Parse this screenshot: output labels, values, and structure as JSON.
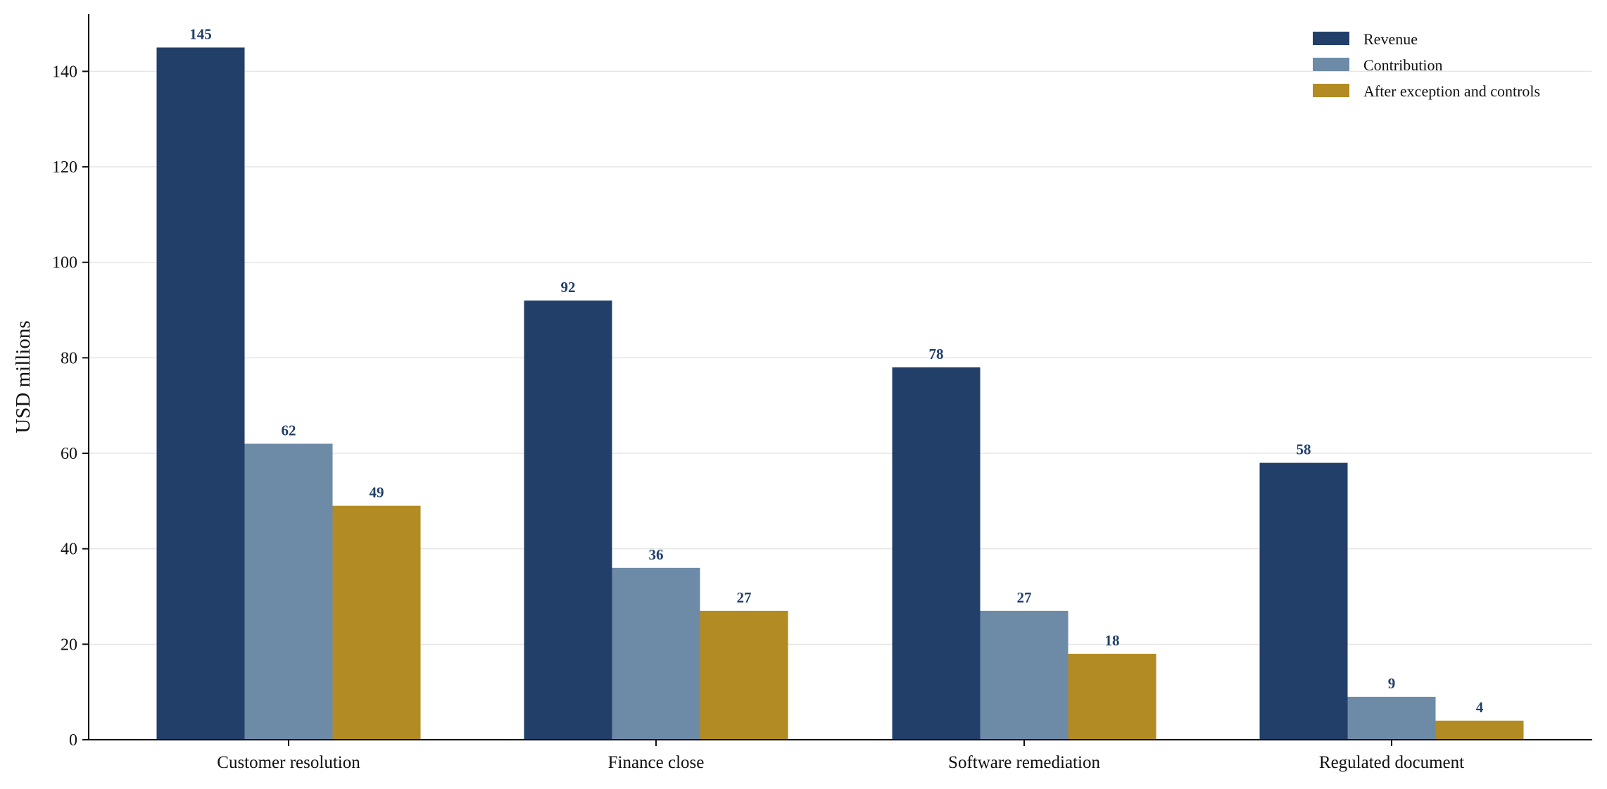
{
  "chart_data": {
    "type": "bar",
    "title": "",
    "xlabel": "",
    "ylabel": "USD millions",
    "ylim": [
      0,
      152
    ],
    "yticks": [
      0,
      20,
      40,
      60,
      80,
      100,
      120,
      140
    ],
    "grid": "horizontal",
    "legend_position": "top-right",
    "categories": [
      "Customer resolution",
      "Finance close",
      "Software remediation",
      "Regulated document"
    ],
    "series": [
      {
        "name": "Revenue",
        "color": "#213f69",
        "values": [
          145,
          92,
          78,
          58
        ]
      },
      {
        "name": "Contribution",
        "color": "#6d8ba7",
        "values": [
          62,
          36,
          27,
          9
        ]
      },
      {
        "name": "After exception and controls",
        "color": "#b38b23",
        "values": [
          49,
          27,
          18,
          4
        ]
      }
    ]
  }
}
